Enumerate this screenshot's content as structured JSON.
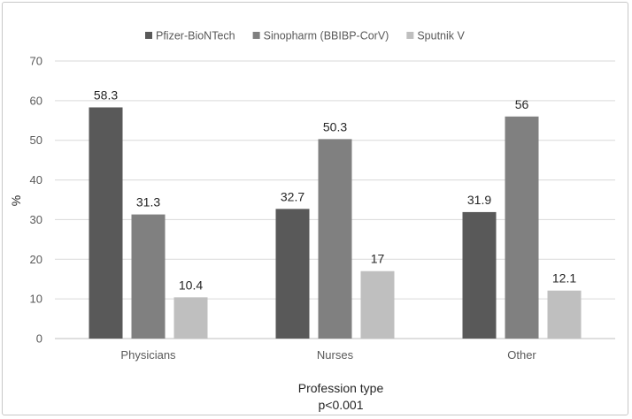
{
  "chart_data": {
    "type": "bar",
    "categories": [
      "Physicians",
      "Nurses",
      "Other"
    ],
    "series": [
      {
        "name": "Pfizer-BioNTech",
        "values": [
          58.3,
          32.7,
          31.9
        ],
        "color": "#595959"
      },
      {
        "name": "Sinopharm (BBIBP-CorV)",
        "values": [
          31.3,
          50.3,
          56
        ],
        "color": "#808080"
      },
      {
        "name": "Sputnik V",
        "values": [
          10.4,
          17,
          12.1
        ],
        "color": "#bfbfbf"
      }
    ],
    "ylabel": "%",
    "xlabel": "Profession type",
    "xlabel_line2": "p<0.001",
    "ylim": [
      0,
      70
    ],
    "yticks": [
      0,
      10,
      20,
      30,
      40,
      50,
      60,
      70
    ],
    "grid": true,
    "legend_position": "top"
  }
}
